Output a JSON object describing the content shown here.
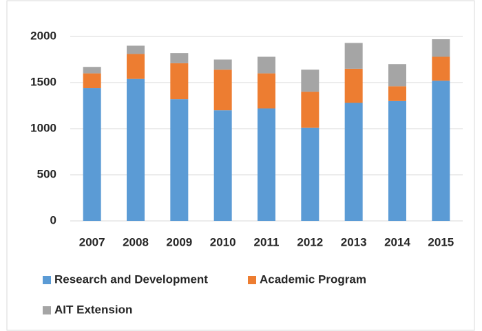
{
  "chart_data": {
    "type": "stacked-bar",
    "categories": [
      "2007",
      "2008",
      "2009",
      "2010",
      "2011",
      "2012",
      "2013",
      "2014",
      "2015"
    ],
    "series": [
      {
        "name": "Research and Development",
        "color": "#5b9bd5",
        "values": [
          1440,
          1540,
          1320,
          1200,
          1220,
          1010,
          1280,
          1300,
          1520
        ]
      },
      {
        "name": "Academic Program",
        "color": "#ed7d31",
        "values": [
          160,
          270,
          390,
          440,
          380,
          390,
          370,
          160,
          260
        ]
      },
      {
        "name": "AIT Extension",
        "color": "#a5a5a5",
        "values": [
          70,
          90,
          110,
          110,
          180,
          240,
          280,
          240,
          190
        ]
      }
    ],
    "ylim": [
      0,
      2000
    ],
    "yticks": [
      0,
      500,
      1000,
      1500,
      2000
    ],
    "grid": true,
    "legend": "bottom"
  }
}
